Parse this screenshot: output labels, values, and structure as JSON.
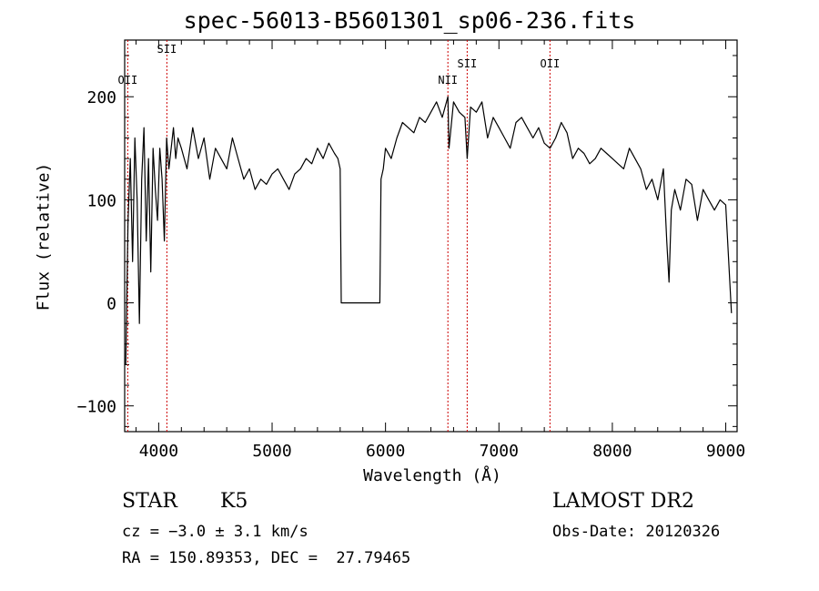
{
  "header": {
    "title": "spec-56013-B5601301_sp06-236.fits"
  },
  "info": {
    "object_class": "STAR",
    "subclass": "K5",
    "survey": "LAMOST DR2",
    "cz": "cz = −3.0 ± 3.1 km/s",
    "obs_date": "Obs-Date: 20120326",
    "radec": "RA = 150.89353, DEC =  27.79465"
  },
  "chart_data": {
    "type": "line",
    "title": "spec-56013-B5601301_sp06-236.fits",
    "xlabel": "Wavelength (Å)",
    "ylabel": "Flux (relative)",
    "xlim": [
      3700,
      9100
    ],
    "ylim": [
      -125,
      255
    ],
    "xticks": [
      4000,
      5000,
      6000,
      7000,
      8000,
      9000
    ],
    "xtick_labels": [
      "4000",
      "5000",
      "6000",
      "7000",
      "8000",
      "9000"
    ],
    "yticks": [
      -100,
      0,
      100,
      200
    ],
    "ytick_labels": [
      "−100",
      "0",
      "100",
      "200"
    ],
    "grid": false,
    "line_color": "#000000",
    "marker_color": "#cc0000",
    "lines": [
      {
        "label": "OII",
        "wavelength": 3727
      },
      {
        "label": "SII",
        "wavelength": 4072
      },
      {
        "label": "NII",
        "wavelength": 6550
      },
      {
        "label": "SII",
        "wavelength": 6720
      },
      {
        "label": "OII",
        "wavelength": 7450
      }
    ],
    "series": [
      {
        "x": [
          3710,
          3730,
          3750,
          3770,
          3790,
          3810,
          3830,
          3850,
          3870,
          3890,
          3910,
          3930,
          3950,
          3970,
          3990,
          4010,
          4030,
          4050,
          4070,
          4090,
          4110,
          4130,
          4150,
          4170,
          4200,
          4250,
          4300,
          4350,
          4400,
          4450,
          4500,
          4550,
          4600,
          4650,
          4700,
          4750,
          4800,
          4850,
          4900,
          4950,
          5000,
          5050,
          5100,
          5150,
          5200,
          5250,
          5300,
          5350,
          5400,
          5450,
          5500,
          5550,
          5580,
          5600,
          5610,
          5950,
          5960,
          5980,
          6000,
          6050,
          6100,
          6150,
          6200,
          6250,
          6300,
          6350,
          6400,
          6450,
          6500,
          6550,
          6560,
          6600,
          6650,
          6700,
          6720,
          6750,
          6800,
          6850,
          6900,
          6950,
          7000,
          7050,
          7100,
          7150,
          7200,
          7250,
          7300,
          7350,
          7400,
          7450,
          7500,
          7550,
          7600,
          7650,
          7700,
          7750,
          7800,
          7850,
          7900,
          7950,
          8000,
          8050,
          8100,
          8150,
          8200,
          8250,
          8300,
          8350,
          8400,
          8450,
          8480,
          8500,
          8520,
          8550,
          8600,
          8650,
          8700,
          8750,
          8800,
          8850,
          8900,
          8950,
          9000,
          9050
        ],
        "y": [
          -60,
          80,
          140,
          40,
          160,
          100,
          -20,
          120,
          170,
          60,
          140,
          30,
          150,
          110,
          80,
          150,
          120,
          60,
          160,
          130,
          150,
          170,
          140,
          160,
          150,
          130,
          170,
          140,
          160,
          120,
          150,
          140,
          130,
          160,
          140,
          120,
          130,
          110,
          120,
          115,
          125,
          130,
          120,
          110,
          125,
          130,
          140,
          135,
          150,
          140,
          155,
          145,
          140,
          130,
          0,
          0,
          120,
          130,
          150,
          140,
          160,
          175,
          170,
          165,
          180,
          175,
          185,
          195,
          180,
          200,
          150,
          195,
          185,
          180,
          140,
          190,
          185,
          195,
          160,
          180,
          170,
          160,
          150,
          175,
          180,
          170,
          160,
          170,
          155,
          150,
          160,
          175,
          165,
          140,
          150,
          145,
          135,
          140,
          150,
          145,
          140,
          135,
          130,
          150,
          140,
          130,
          110,
          120,
          100,
          130,
          60,
          20,
          90,
          110,
          90,
          120,
          115,
          80,
          110,
          100,
          90,
          100,
          95,
          -10
        ]
      }
    ]
  }
}
